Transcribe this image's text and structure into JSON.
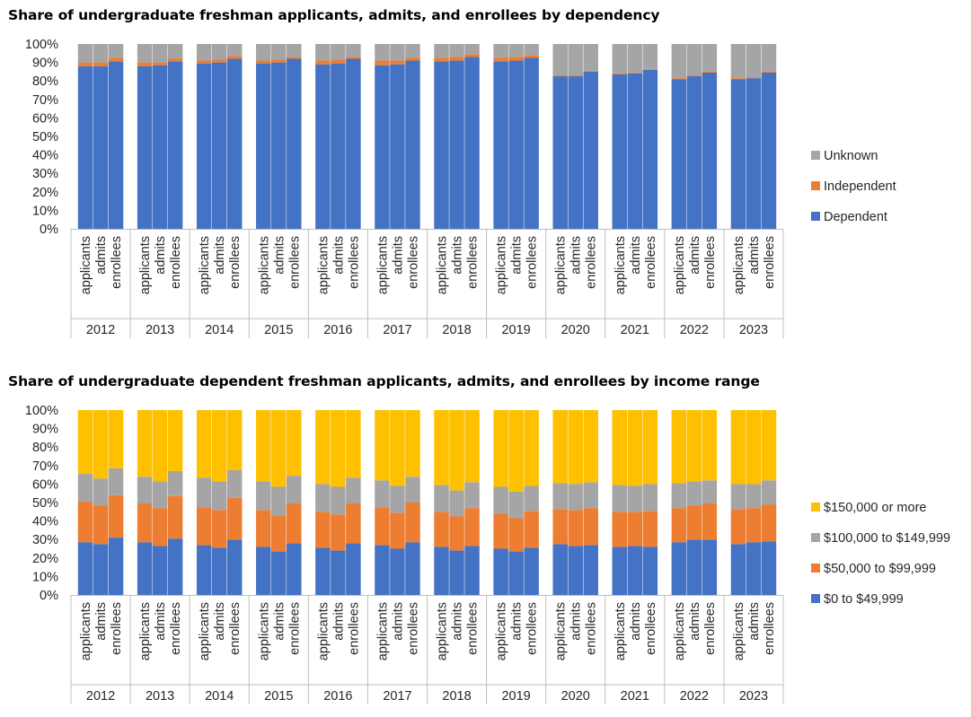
{
  "chart_data": [
    {
      "type": "bar",
      "stacked": true,
      "title": "Share of undergraduate freshman applicants, admits, and enrollees by dependency",
      "groups": [
        "2012",
        "2013",
        "2014",
        "2015",
        "2016",
        "2017",
        "2018",
        "2019",
        "2020",
        "2021",
        "2022",
        "2023"
      ],
      "subcategories": [
        "applicants",
        "admits",
        "enrollees"
      ],
      "ylim": [
        0,
        100
      ],
      "yticks": [
        "0%",
        "10%",
        "20%",
        "30%",
        "40%",
        "50%",
        "60%",
        "70%",
        "80%",
        "90%",
        "100%"
      ],
      "legend_position": "right",
      "series": [
        {
          "name": "Dependent",
          "color": "#4472C4",
          "values": [
            88,
            88,
            90.5,
            88,
            88.5,
            90.5,
            89.5,
            90,
            92,
            89.5,
            90,
            92,
            89,
            89.5,
            92,
            88.5,
            89,
            91,
            90.5,
            91,
            93,
            90.5,
            91,
            92.5,
            82.5,
            82.5,
            85,
            83.5,
            84,
            86,
            81,
            82.5,
            84.5,
            81,
            81.5,
            84.5
          ]
        },
        {
          "name": "Independent",
          "color": "#ED7D31",
          "values": [
            2,
            2,
            2,
            2,
            1.5,
            1.5,
            1.5,
            1.5,
            1.5,
            1.5,
            1.5,
            1,
            2,
            2,
            1,
            2.5,
            2,
            1.5,
            2,
            2,
            1.5,
            2,
            2,
            1.5,
            0.5,
            0.5,
            0.5,
            0.5,
            0.5,
            0.5,
            0.5,
            0.5,
            0.5,
            0.5,
            0.5,
            0.5
          ]
        },
        {
          "name": "Unknown",
          "color": "#A5A5A5",
          "values": [
            10,
            10,
            7.5,
            10,
            10,
            8,
            9,
            8.5,
            6.5,
            9,
            8.5,
            7,
            9,
            8.5,
            7,
            9,
            9,
            7.5,
            7.5,
            7,
            5.5,
            7.5,
            7,
            6,
            17,
            17,
            14.5,
            16,
            15.5,
            13.5,
            18.5,
            17,
            15,
            18.5,
            18,
            15
          ]
        }
      ]
    },
    {
      "type": "bar",
      "stacked": true,
      "title": "Share of undergraduate dependent freshman applicants, admits, and enrollees by income range",
      "groups": [
        "2012",
        "2013",
        "2014",
        "2015",
        "2016",
        "2017",
        "2018",
        "2019",
        "2020",
        "2021",
        "2022",
        "2023"
      ],
      "subcategories": [
        "applicants",
        "admits",
        "enrollees"
      ],
      "ylim": [
        0,
        100
      ],
      "yticks": [
        "0%",
        "10%",
        "20%",
        "30%",
        "40%",
        "50%",
        "60%",
        "70%",
        "80%",
        "90%",
        "100%"
      ],
      "legend_position": "right",
      "series": [
        {
          "name": "$0 to $49,999",
          "color": "#4472C4",
          "values": [
            28.5,
            27.5,
            31,
            28.5,
            26.5,
            30.5,
            27,
            25.5,
            30,
            26,
            23.5,
            28,
            25.5,
            24,
            28,
            27,
            25,
            28.5,
            26,
            24,
            26.5,
            25,
            23.5,
            25.5,
            27.5,
            26.5,
            27,
            26,
            26.5,
            26,
            28.5,
            30,
            30,
            27.5,
            28.5,
            29
          ]
        },
        {
          "name": "$50,000 to $99,999",
          "color": "#ED7D31",
          "values": [
            22,
            21,
            23,
            21,
            20.5,
            23,
            20.5,
            20.5,
            22.5,
            20,
            19.5,
            21.5,
            19.5,
            19.5,
            21.5,
            20.5,
            19.5,
            21.5,
            19,
            18.5,
            20.5,
            19,
            18,
            20,
            19,
            19.5,
            20,
            19,
            18.5,
            19.5,
            18.5,
            18.5,
            19.5,
            19,
            18.5,
            20
          ]
        },
        {
          "name": "$100,000 to $149,999",
          "color": "#A5A5A5",
          "values": [
            15,
            14.5,
            14.5,
            14.5,
            14.5,
            13.5,
            16,
            15.5,
            15,
            15.5,
            15.5,
            15,
            15,
            15,
            14,
            14.5,
            14.5,
            14,
            14.5,
            14,
            14,
            14.5,
            14.5,
            13.5,
            14,
            14,
            14,
            14.5,
            14,
            14.5,
            13.5,
            13,
            12.5,
            13.5,
            13,
            13
          ]
        },
        {
          "name": "$150,000 or more",
          "color": "#FFC000",
          "values": [
            34.5,
            37,
            31.5,
            36,
            38.5,
            33,
            36.5,
            38.5,
            32.5,
            38.5,
            41.5,
            35.5,
            40,
            41.5,
            36.5,
            38,
            41,
            36,
            40.5,
            43.5,
            39,
            41.5,
            44,
            41,
            39.5,
            40,
            39,
            40.5,
            41,
            40,
            39.5,
            38.5,
            38,
            40,
            40,
            38
          ]
        }
      ]
    }
  ]
}
